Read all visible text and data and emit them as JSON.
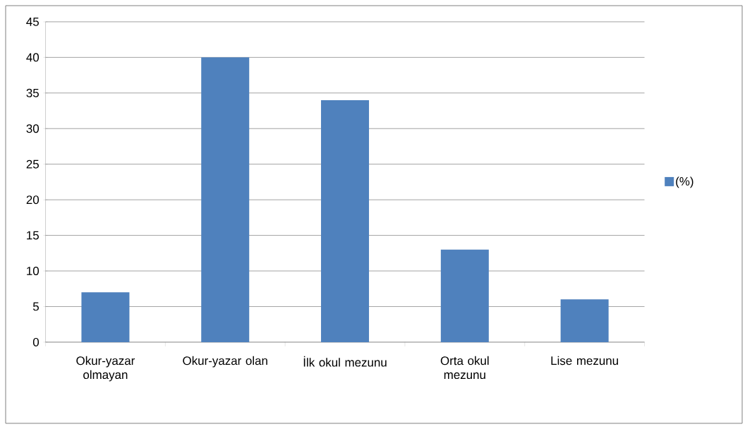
{
  "chart_data": {
    "type": "bar",
    "categories": [
      "Okur-yazar olmayan",
      "Okur-yazar olan",
      "İlk okul mezunu",
      "Orta okul mezunu",
      "Lise mezunu"
    ],
    "series": [
      {
        "name": "(%)",
        "color": "#4f81bd",
        "values": [
          7,
          40,
          34,
          13,
          6
        ]
      }
    ],
    "ylim": [
      0,
      45
    ],
    "yticks": [
      0,
      5,
      10,
      15,
      20,
      25,
      30,
      35,
      40,
      45
    ],
    "grid": "y",
    "legend": "right"
  }
}
